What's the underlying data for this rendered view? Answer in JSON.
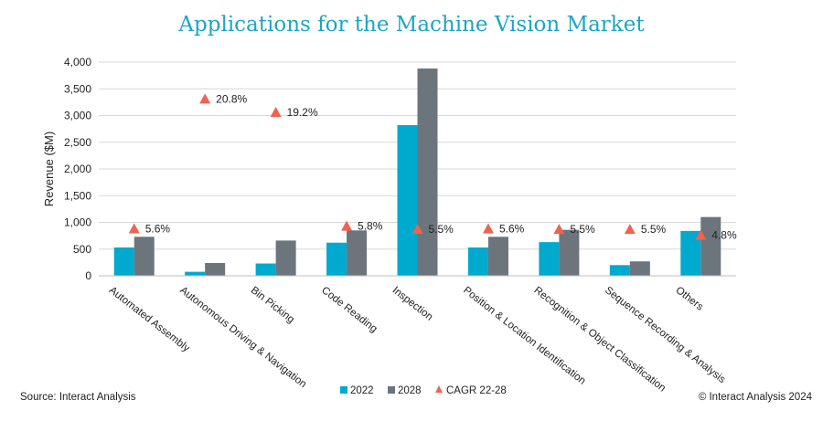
{
  "chart_data": {
    "type": "bar",
    "title": "Applications for the Machine Vision Market",
    "ylabel": "Revenue ($M)",
    "xlabel": "",
    "ylim": [
      0,
      4000
    ],
    "yticks": [
      "0",
      "500",
      "1,000",
      "1,500",
      "2,000",
      "2,500",
      "3,000",
      "3,500",
      "4,000"
    ],
    "categories": [
      "Automated Assembly",
      "Autonomous Driving & Navigation",
      "Bin Picking",
      "Code Reading",
      "Inspection",
      "Position & Location Identification",
      "Recognition & Object Classification",
      "Sequence Recording & Analysis",
      "Others"
    ],
    "series": [
      {
        "name": "2022",
        "color": "#00a9ce",
        "values": [
          530,
          75,
          230,
          620,
          2820,
          530,
          630,
          200,
          840
        ]
      },
      {
        "name": "2028",
        "color": "#6c757c",
        "values": [
          730,
          240,
          660,
          850,
          3880,
          730,
          860,
          270,
          1100
        ]
      }
    ],
    "cagr": {
      "name": "CAGR 22-28",
      "color": "#f06251",
      "values": [
        880,
        3310,
        3060,
        930,
        870,
        880,
        870,
        870,
        760
      ],
      "labels": [
        "5.6%",
        "20.8%",
        "19.2%",
        "5.8%",
        "5.5%",
        "5.6%",
        "5.5%",
        "5.5%",
        "4.8%"
      ]
    },
    "legend_position": "bottom-center",
    "grid": true
  },
  "footer": {
    "source": "Source: Interact Analysis",
    "copyright": "© Interact Analysis 2024"
  }
}
